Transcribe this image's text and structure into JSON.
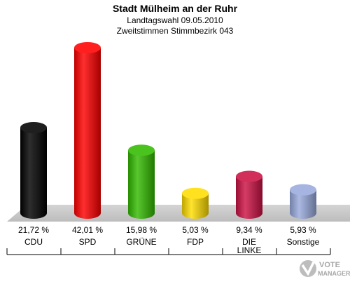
{
  "header": {
    "title": "Stadt Mülheim an der Ruhr",
    "subtitle": "Landtagswahl 09.05.2010",
    "subtitle2": "Zweitstimmen Stimmbezirk 043"
  },
  "chart_data": {
    "type": "bar",
    "categories": [
      "CDU",
      "SPD",
      "GRÜNE",
      "FDP",
      "DIE LINKE",
      "Sonstige"
    ],
    "category_lines": [
      [
        "CDU"
      ],
      [
        "SPD"
      ],
      [
        "GRÜNE"
      ],
      [
        "FDP"
      ],
      [
        "DIE",
        "LINKE"
      ],
      [
        "Sonstige"
      ]
    ],
    "values": [
      21.72,
      42.01,
      15.98,
      5.03,
      9.34,
      5.93
    ],
    "value_labels": [
      "21,72 %",
      "42,01 %",
      "15,98 %",
      "5,03 %",
      "9,34 %",
      "5,93 %"
    ],
    "colors": [
      "#000000",
      "#ff0000",
      "#33bb00",
      "#ffdd00",
      "#cc1144",
      "#99aadd"
    ],
    "ylim": [
      0,
      42.01
    ],
    "grid": false,
    "legend": "none"
  },
  "logo": {
    "line1": "VOTE",
    "line2": "MANAGER"
  }
}
